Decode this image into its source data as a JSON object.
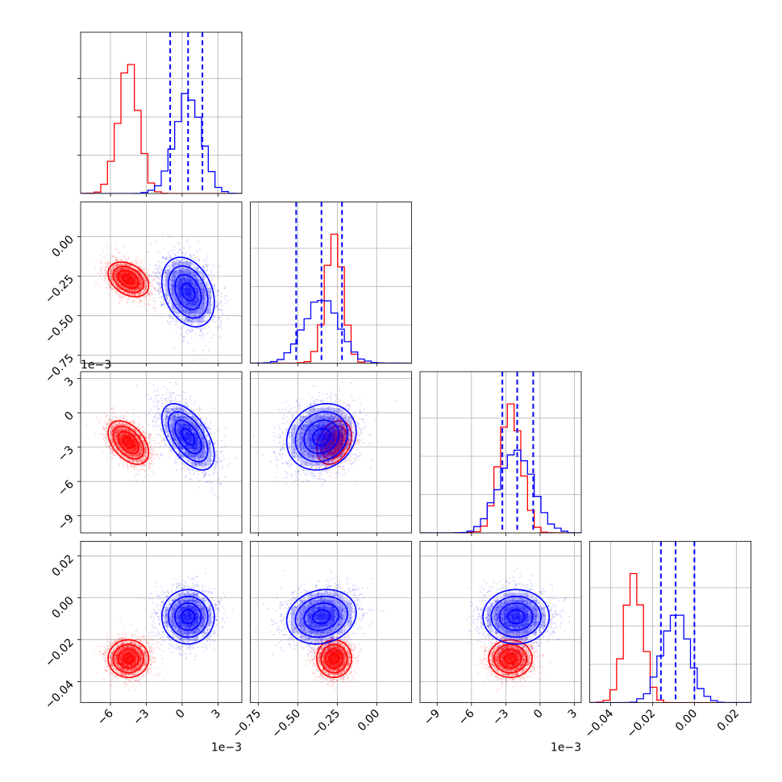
{
  "colors": {
    "series_red": "#ff0000",
    "series_blue": "#0000ff",
    "grid": "#b0b0b0",
    "frame": "#000000",
    "background": "#ffffff"
  },
  "chart_data": {
    "type": "corner",
    "title": "",
    "grid": true,
    "legend": "none",
    "n_params": 4,
    "params": [
      {
        "index": 0,
        "range": [
          -8.5,
          5.0
        ],
        "ticks": [
          -6,
          -3,
          0,
          3
        ],
        "tick_labels": [
          "−6",
          "−3",
          "0",
          "3"
        ],
        "offset_text": "1e−3"
      },
      {
        "index": 1,
        "range": [
          -0.8,
          0.22
        ],
        "ticks": [
          -0.75,
          -0.5,
          -0.25,
          0.0
        ],
        "tick_labels": [
          "−0.75",
          "−0.50",
          "−0.25",
          "0.00"
        ],
        "offset_text": ""
      },
      {
        "index": 2,
        "range": [
          -10.5,
          3.6
        ],
        "ticks": [
          -9,
          -6,
          -3,
          0,
          3
        ],
        "tick_labels": [
          "−9",
          "−6",
          "−3",
          "0",
          "3"
        ],
        "offset_text": "1e−3"
      },
      {
        "index": 3,
        "range": [
          -0.05,
          0.027
        ],
        "ticks": [
          -0.04,
          -0.02,
          0.0,
          0.02
        ],
        "tick_labels": [
          "−0.04",
          "−0.02",
          "0.00",
          "0.02"
        ],
        "offset_text": ""
      }
    ],
    "series": [
      {
        "color": "#ff0000",
        "means": [
          -4.5,
          -0.27,
          -2.6,
          -0.029
        ],
        "sds": [
          0.85,
          0.055,
          0.95,
          0.0045
        ],
        "corr": [
          [
            0,
            1,
            -0.35
          ],
          [
            0,
            2,
            -0.45
          ],
          [
            1,
            2,
            0.3
          ],
          [
            0,
            3,
            0.0
          ],
          [
            1,
            3,
            0.0
          ],
          [
            2,
            3,
            0.0
          ]
        ],
        "quantiles_shown": false
      },
      {
        "color": "#0000ff",
        "means": [
          0.5,
          -0.35,
          -2.1,
          -0.009
        ],
        "sds": [
          1.1,
          0.11,
          1.45,
          0.0065
        ],
        "corr": [
          [
            0,
            1,
            -0.3
          ],
          [
            0,
            2,
            -0.55
          ],
          [
            1,
            2,
            0.15
          ],
          [
            0,
            3,
            0.0
          ],
          [
            1,
            3,
            0.15
          ],
          [
            2,
            3,
            0.0
          ]
        ],
        "quantiles_shown": true,
        "quantiles": [
          [
            -1.0,
            0.5,
            1.7
          ],
          [
            -0.51,
            -0.35,
            -0.22
          ],
          [
            -3.3,
            -2.0,
            -0.6
          ],
          [
            -0.016,
            -0.009,
            0.0
          ]
        ]
      }
    ]
  }
}
